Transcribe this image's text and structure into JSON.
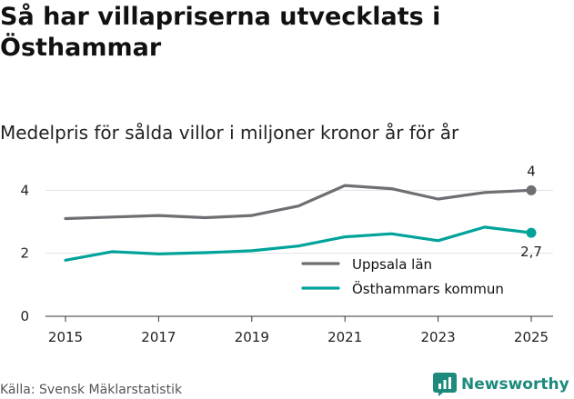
{
  "title": "Så har villapriserna utvecklats i Östhammar",
  "subtitle": "Medelpris för sålda villor i miljoner kronor år för år",
  "source": "Källa: Svensk Mäklarstatistik",
  "brand": {
    "name": "Newsworthy",
    "icon": "bar-chart-icon",
    "color": "#1c8a7c"
  },
  "chart_data": {
    "type": "line",
    "x": [
      2015,
      2016,
      2017,
      2018,
      2019,
      2020,
      2021,
      2022,
      2023,
      2024,
      2025
    ],
    "series": [
      {
        "name": "Uppsala län",
        "color": "#6e6e73",
        "values": [
          3.1,
          3.15,
          3.2,
          3.13,
          3.2,
          3.5,
          4.15,
          4.05,
          3.72,
          3.93,
          4.0
        ],
        "end_label": "4"
      },
      {
        "name": "Östhammars kommun",
        "color": "#00a39a",
        "values": [
          1.78,
          2.05,
          1.98,
          2.02,
          2.08,
          2.23,
          2.52,
          2.62,
          2.4,
          2.83,
          2.65
        ],
        "end_label": "2,7"
      }
    ],
    "x_ticks": [
      "2015",
      "2017",
      "2019",
      "2021",
      "2023",
      "2025"
    ],
    "y_ticks": [
      "0",
      "2",
      "4"
    ],
    "ylim": [
      0,
      4.5
    ],
    "xlim": [
      2015,
      2025
    ],
    "legend": [
      "Uppsala län",
      "Östhammars kommun"
    ],
    "grid": true
  }
}
